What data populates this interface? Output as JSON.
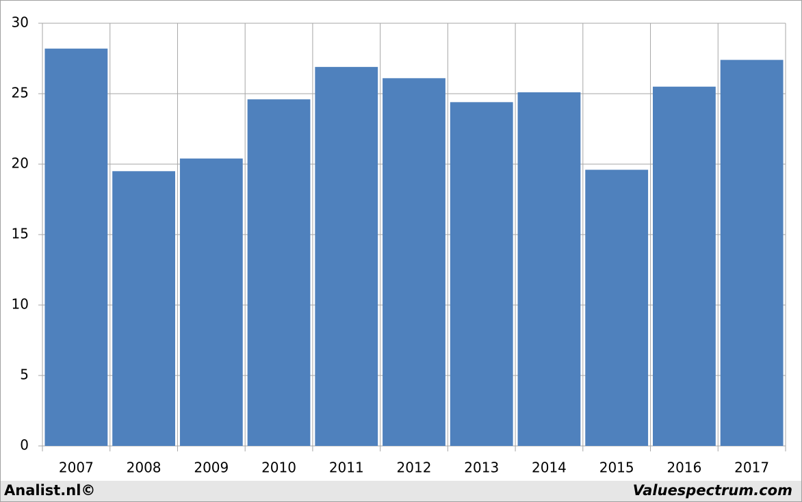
{
  "chart_data": {
    "type": "bar",
    "categories": [
      "2007",
      "2008",
      "2009",
      "2010",
      "2011",
      "2012",
      "2013",
      "2014",
      "2015",
      "2016",
      "2017"
    ],
    "values": [
      28.2,
      19.5,
      20.4,
      24.6,
      26.9,
      26.1,
      24.4,
      25.1,
      19.6,
      25.5,
      27.4
    ],
    "color": "#4f81bd",
    "ylim": [
      0,
      30
    ],
    "yticks": [
      0,
      5,
      10,
      15,
      20,
      25,
      30
    ],
    "grid": true,
    "annotations": [
      "Analist.nl©",
      "Valuespectrum.com"
    ]
  }
}
